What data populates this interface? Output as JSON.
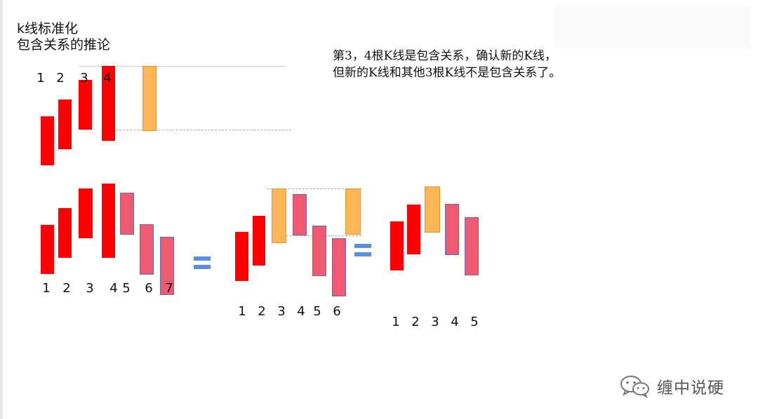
{
  "title": {
    "line1": "k线标准化",
    "line2": "包含关系的推论"
  },
  "note": {
    "line1": "第3，4根K线是包含关系，确认新的K线，",
    "line2": "但新的K线和其他3根K线不是包含关系了。"
  },
  "top_diagram": {
    "labels": [
      "1",
      "2",
      "3",
      "4"
    ]
  },
  "diagram_a": {
    "labels": [
      "1",
      "2",
      "3",
      "4",
      "5",
      "6",
      "7"
    ]
  },
  "diagram_b": {
    "labels": [
      "1",
      "2",
      "3",
      "4",
      "5",
      "6"
    ]
  },
  "diagram_c": {
    "labels": [
      "1",
      "2",
      "3",
      "4",
      "5"
    ]
  },
  "colors": {
    "red": "#ff0000",
    "orange": "#ffb553",
    "pink": "#ee5a72",
    "equals": "#5b8fd9"
  },
  "icons": {
    "watermark": "wechat-icon",
    "equals": "equals-icon"
  },
  "watermark": {
    "text": "缠中说硬"
  }
}
